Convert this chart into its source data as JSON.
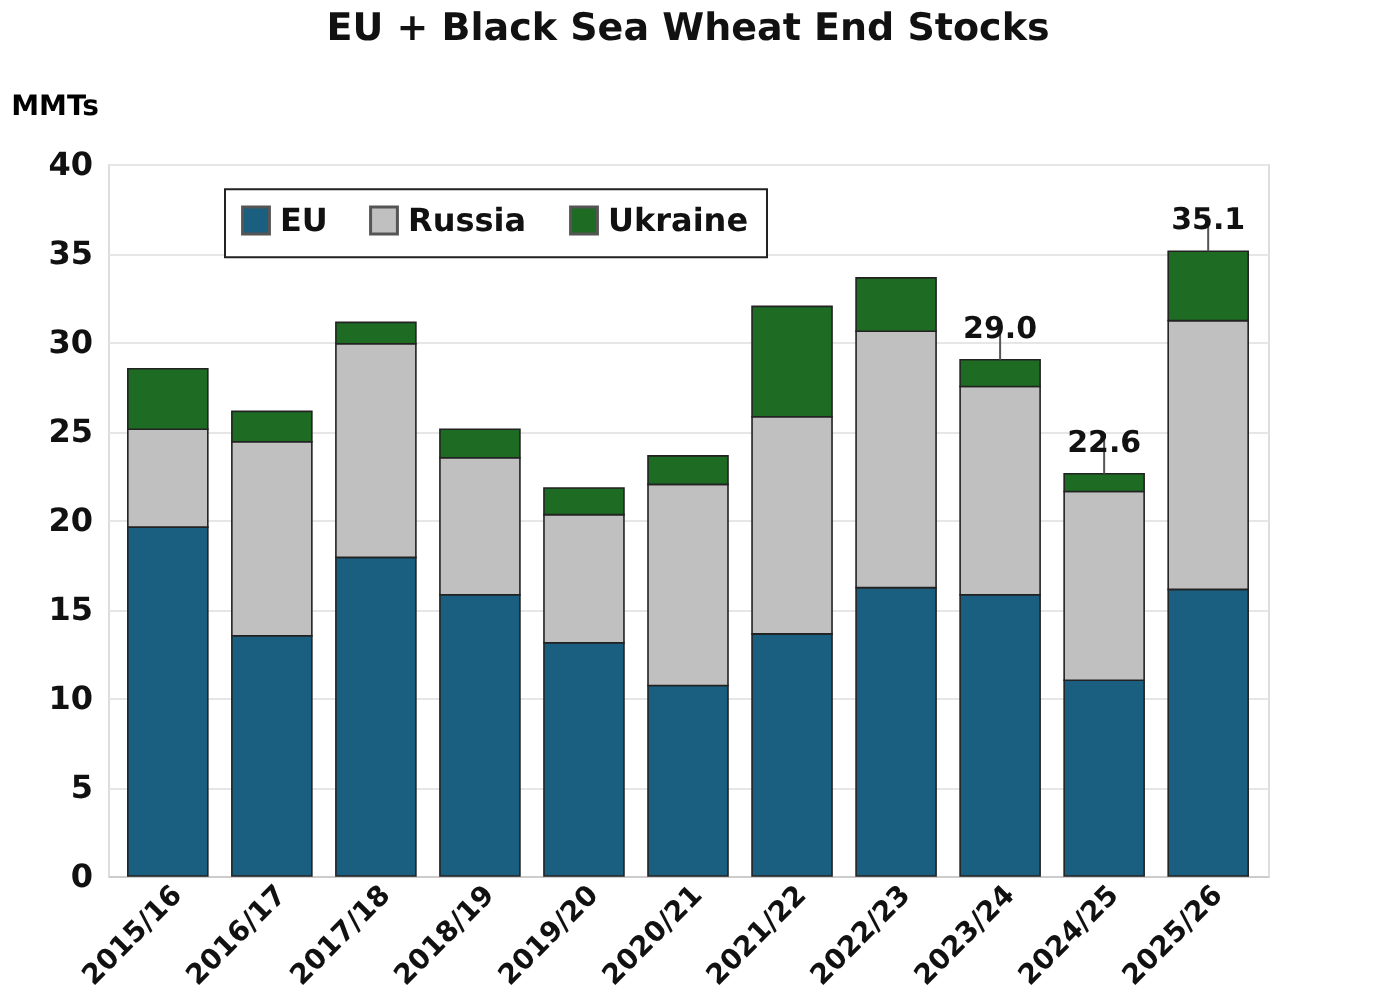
{
  "chart_data": {
    "type": "bar",
    "title": "EU + Black Sea Wheat End Stocks",
    "ylabel": "MMTs",
    "categories": [
      "2015/16",
      "2016/17",
      "2017/18",
      "2018/19",
      "2019/20",
      "2020/21",
      "2021/22",
      "2022/23",
      "2023/24",
      "2024/25",
      "2025/26"
    ],
    "series": [
      {
        "name": "EU",
        "color": "#1a5f80",
        "values": [
          19.6,
          13.5,
          17.9,
          15.8,
          13.1,
          10.7,
          13.6,
          16.2,
          15.8,
          11.0,
          16.1
        ]
      },
      {
        "name": "Russia",
        "color": "#c0c0c0",
        "values": [
          5.5,
          10.9,
          12.0,
          7.7,
          7.2,
          11.3,
          12.2,
          14.4,
          11.7,
          10.6,
          15.1
        ]
      },
      {
        "name": "Ukraine",
        "color": "#1e6b23",
        "values": [
          3.4,
          1.7,
          1.2,
          1.6,
          1.5,
          1.6,
          6.2,
          3.0,
          1.5,
          1.0,
          3.9
        ]
      }
    ],
    "stacked": true,
    "totals": [
      null,
      null,
      null,
      null,
      null,
      null,
      null,
      null,
      "29.0",
      "22.6",
      "35.1"
    ],
    "ylim": [
      0,
      40
    ],
    "yticks": [
      0,
      5,
      10,
      15,
      20,
      25,
      30,
      35,
      40
    ],
    "grid": "y",
    "legend": "top left"
  }
}
